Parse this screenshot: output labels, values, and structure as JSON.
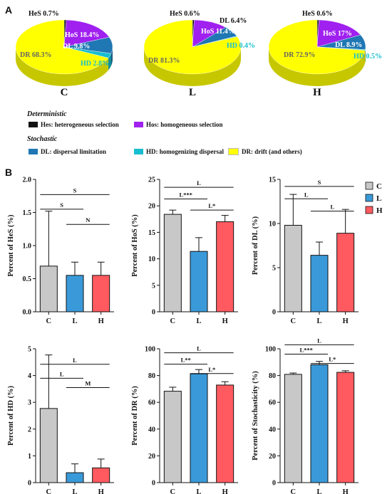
{
  "panel_labels": {
    "a": "A",
    "b": "B"
  },
  "legend": {
    "deterministic_title": "Deterministic",
    "stochastic_title": "Stochastic",
    "items": [
      {
        "text": "Hes: heterogeneous selection",
        "color": "#111111"
      },
      {
        "text": "Hos: homogeneous selection",
        "color": "#a020f0"
      },
      {
        "text": "DL: dispersal limitation",
        "color": "#1f77b4"
      },
      {
        "text": "HD: homogenizing dispersal",
        "color": "#17becf"
      },
      {
        "text": "DR: drift (and others)",
        "color": "#ffff00"
      }
    ]
  },
  "chart_data": [
    {
      "type": "pie",
      "title": "C",
      "labels": [
        "HeS 0.7%",
        "HoS 18.4%",
        "DL 9.8%",
        "HD 2.8%",
        "DR 68.3%"
      ],
      "values": [
        0.7,
        18.4,
        9.8,
        2.8,
        68.3
      ],
      "colors": [
        "#111111",
        "#a020f0",
        "#1f77b4",
        "#17becf",
        "#ffff00"
      ]
    },
    {
      "type": "pie",
      "title": "L",
      "labels": [
        "HeS 0.6%",
        "HoS 11.4%",
        "DL 6.4%",
        "HD 0.4%",
        "DR 81.3%"
      ],
      "values": [
        0.6,
        11.4,
        6.4,
        0.4,
        81.3
      ],
      "colors": [
        "#111111",
        "#a020f0",
        "#1f77b4",
        "#17becf",
        "#ffff00"
      ]
    },
    {
      "type": "pie",
      "title": "H",
      "labels": [
        "HeS 0.6%",
        "HoS 17%",
        "DL 8.9%",
        "HD 0.5%",
        "DR 72.9%"
      ],
      "values": [
        0.6,
        17,
        8.9,
        0.5,
        72.9
      ],
      "colors": [
        "#111111",
        "#a020f0",
        "#1f77b4",
        "#17becf",
        "#ffff00"
      ]
    },
    {
      "type": "bar",
      "ylabel": "Percent of HeS (%)",
      "categories": [
        "C",
        "L",
        "H"
      ],
      "values": [
        0.69,
        0.55,
        0.55
      ],
      "errors": [
        0.83,
        0.2,
        0.2
      ],
      "ylim": [
        0,
        2.0
      ],
      "yticks": [
        "0.0",
        "0.5",
        "1.0",
        "1.5",
        "2.0"
      ],
      "significance": [
        {
          "from": 0,
          "to": 2,
          "label": "S",
          "y": 1.77
        },
        {
          "from": 0,
          "to": 1,
          "label": "S",
          "y": 1.55
        },
        {
          "from": 1,
          "to": 2,
          "label": "N",
          "y": 1.32
        }
      ]
    },
    {
      "type": "bar",
      "ylabel": "Percent of HoS (%)",
      "categories": [
        "C",
        "L",
        "H"
      ],
      "values": [
        18.4,
        11.4,
        17.0
      ],
      "errors": [
        0.8,
        2.6,
        1.2
      ],
      "ylim": [
        0,
        25
      ],
      "yticks": [
        "0",
        "5",
        "10",
        "15",
        "20",
        "25"
      ],
      "significance": [
        {
          "from": 0,
          "to": 2,
          "label": "L",
          "y": 23.5
        },
        {
          "from": 0,
          "to": 1,
          "label": "L***",
          "y": 21.3
        },
        {
          "from": 1,
          "to": 2,
          "label": "L*",
          "y": 19.2
        }
      ]
    },
    {
      "type": "bar",
      "ylabel": "Percent of DL (%)",
      "categories": [
        "C",
        "L",
        "H"
      ],
      "values": [
        9.8,
        6.4,
        8.9
      ],
      "errors": [
        3.5,
        1.5,
        2.7
      ],
      "ylim": [
        0,
        15
      ],
      "yticks": [
        "0",
        "5",
        "10",
        "15"
      ],
      "significance": [
        {
          "from": 0,
          "to": 2,
          "label": "S",
          "y": 14.2
        },
        {
          "from": 0,
          "to": 1,
          "label": "L",
          "y": 12.8
        },
        {
          "from": 1,
          "to": 2,
          "label": "L",
          "y": 11.4
        }
      ]
    },
    {
      "type": "bar",
      "ylabel": "Percent of HD (%)",
      "categories": [
        "C",
        "L",
        "H"
      ],
      "values": [
        2.77,
        0.37,
        0.55
      ],
      "errors": [
        2.0,
        0.33,
        0.33
      ],
      "ylim": [
        0,
        5
      ],
      "yticks": [
        "0",
        "1",
        "2",
        "3",
        "4",
        "5"
      ],
      "significance": [
        {
          "from": 0,
          "to": 2,
          "label": "L",
          "y": 4.42
        },
        {
          "from": 0,
          "to": 1,
          "label": "L",
          "y": 3.9
        },
        {
          "from": 1,
          "to": 2,
          "label": "M",
          "y": 3.55
        }
      ]
    },
    {
      "type": "bar",
      "ylabel": "Percent of DR (%)",
      "categories": [
        "C",
        "L",
        "H"
      ],
      "values": [
        68.3,
        81.3,
        72.9
      ],
      "errors": [
        3.0,
        3.2,
        2.5
      ],
      "ylim": [
        0,
        100
      ],
      "yticks": [
        "0",
        "20",
        "40",
        "60",
        "80",
        "100"
      ],
      "significance": [
        {
          "from": 0,
          "to": 2,
          "label": "L",
          "y": 97
        },
        {
          "from": 0,
          "to": 1,
          "label": "L**",
          "y": 88.5
        },
        {
          "from": 1,
          "to": 2,
          "label": "L*",
          "y": 81.5
        }
      ]
    },
    {
      "type": "bar",
      "ylabel": "Percent of Stochasticity (%)",
      "categories": [
        "C",
        "L",
        "H"
      ],
      "values": [
        80.9,
        88.1,
        82.4
      ],
      "errors": [
        1.0,
        2.5,
        1.2
      ],
      "ylim": [
        0,
        100
      ],
      "yticks": [
        "0",
        "20",
        "40",
        "60",
        "80",
        "100"
      ],
      "significance": [
        {
          "from": 0,
          "to": 2,
          "label": "L",
          "y": 103
        },
        {
          "from": 0,
          "to": 1,
          "label": "L***",
          "y": 96
        },
        {
          "from": 1,
          "to": 2,
          "label": "L*",
          "y": 89
        }
      ]
    }
  ],
  "bar_legend": [
    {
      "label": "C",
      "color": "#c8c8c8"
    },
    {
      "label": "L",
      "color": "#3a9ad9"
    },
    {
      "label": "H",
      "color": "#ff5a5f"
    }
  ]
}
